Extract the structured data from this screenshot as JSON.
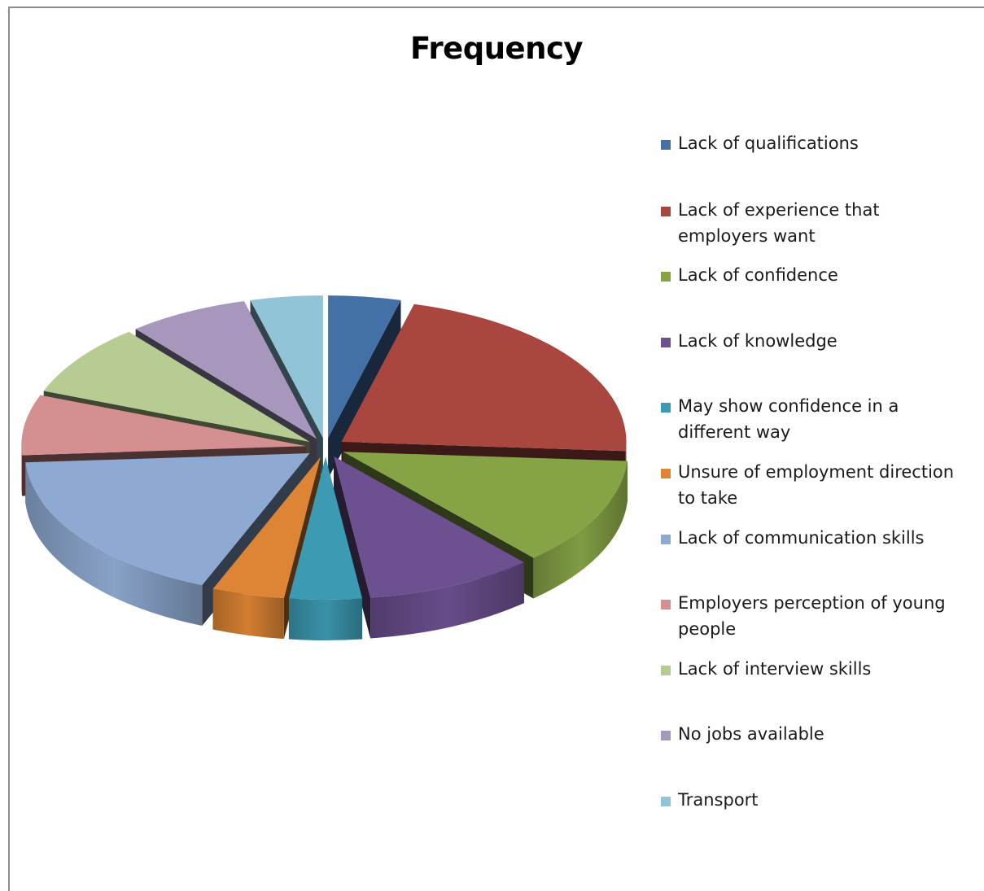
{
  "chart_data": {
    "type": "pie",
    "title": "Frequency",
    "legend_position": "right",
    "three_d": true,
    "exploded": true,
    "categories": [
      "Lack of qualifications",
      "Lack of experience that employers want",
      "Lack of confidence",
      "Lack of knowledge",
      "May show confidence in a different way",
      "Unsure of employment direction to take",
      "Lack of communication skills",
      "Employers perception of young people",
      "Lack of interview skills",
      "No jobs available",
      "Transport"
    ],
    "values": [
      3,
      16,
      9,
      7,
      3,
      3,
      13,
      5,
      6,
      5,
      3
    ],
    "colors": [
      "#4470a8",
      "#a8463f",
      "#86a446",
      "#6c5090",
      "#3c9ab2",
      "#dd8534",
      "#8faad2",
      "#d49090",
      "#b6cc92",
      "#a797bd",
      "#92c4d8"
    ]
  }
}
